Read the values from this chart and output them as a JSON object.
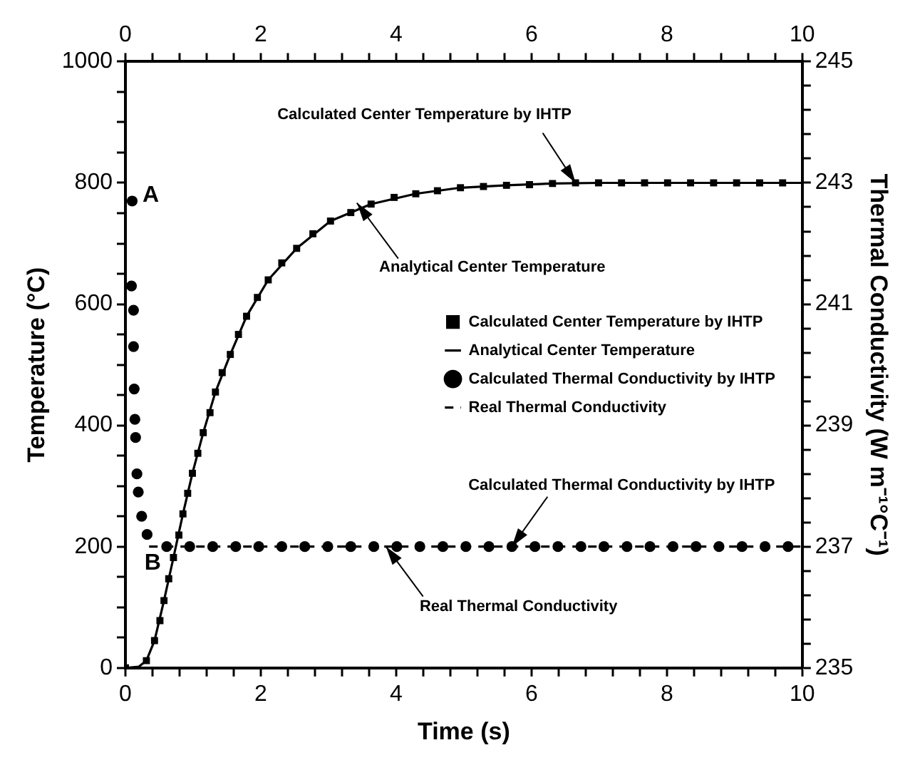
{
  "chart_data": {
    "type": "scatter",
    "xlabel": "Time (s)",
    "ylabel": "Temperature (°C)",
    "y2label": "Thermal Conductivity (W m⁻¹°C⁻¹)",
    "xlim": [
      0,
      10
    ],
    "xticks": [
      0,
      {
        "value": 0.4,
        "label": null
      },
      {
        "value": 0.8,
        "label": null
      },
      {
        "value": 1.2,
        "label": null
      },
      {
        "value": 1.6,
        "label": null
      },
      2,
      {
        "value": 2.4,
        "label": null
      },
      {
        "value": 2.8,
        "label": null
      },
      {
        "value": 3.2,
        "label": null
      },
      {
        "value": 3.6,
        "label": null
      },
      4,
      {
        "value": 4.4,
        "label": null
      },
      {
        "value": 4.8,
        "label": null
      },
      {
        "value": 5.2,
        "label": null
      },
      {
        "value": 5.6,
        "label": null
      },
      6,
      {
        "value": 6.4,
        "label": null
      },
      {
        "value": 6.8,
        "label": null
      },
      {
        "value": 7.2,
        "label": null
      },
      {
        "value": 7.6,
        "label": null
      },
      8,
      {
        "value": 8.4,
        "label": null
      },
      {
        "value": 8.8,
        "label": null
      },
      {
        "value": 9.2,
        "label": null
      },
      {
        "value": 9.6,
        "label": null
      },
      10
    ],
    "x2lim": [
      0,
      10
    ],
    "x2ticks": [
      0,
      {
        "value": 0.4,
        "label": null
      },
      {
        "value": 0.8,
        "label": null
      },
      {
        "value": 1.2,
        "label": null
      },
      {
        "value": 1.6,
        "label": null
      },
      2,
      {
        "value": 2.4,
        "label": null
      },
      {
        "value": 2.8,
        "label": null
      },
      {
        "value": 3.2,
        "label": null
      },
      {
        "value": 3.6,
        "label": null
      },
      4,
      {
        "value": 4.4,
        "label": null
      },
      {
        "value": 4.8,
        "label": null
      },
      {
        "value": 5.2,
        "label": null
      },
      {
        "value": 5.6,
        "label": null
      },
      6,
      {
        "value": 6.4,
        "label": null
      },
      {
        "value": 6.8,
        "label": null
      },
      {
        "value": 7.2,
        "label": null
      },
      {
        "value": 7.6,
        "label": null
      },
      8,
      {
        "value": 8.4,
        "label": null
      },
      {
        "value": 8.8,
        "label": null
      },
      {
        "value": 9.2,
        "label": null
      },
      {
        "value": 9.6,
        "label": null
      },
      10
    ],
    "ylim": [
      0,
      1000
    ],
    "yticks": [
      0,
      {
        "value": 50,
        "label": null
      },
      {
        "value": 100,
        "label": null
      },
      {
        "value": 150,
        "label": null
      },
      200,
      {
        "value": 250,
        "label": null
      },
      {
        "value": 300,
        "label": null
      },
      {
        "value": 350,
        "label": null
      },
      400,
      {
        "value": 450,
        "label": null
      },
      {
        "value": 500,
        "label": null
      },
      {
        "value": 550,
        "label": null
      },
      600,
      {
        "value": 650,
        "label": null
      },
      {
        "value": 700,
        "label": null
      },
      {
        "value": 750,
        "label": null
      },
      800,
      {
        "value": 850,
        "label": null
      },
      {
        "value": 900,
        "label": null
      },
      {
        "value": 950,
        "label": null
      },
      1000
    ],
    "y2lim": [
      235,
      245
    ],
    "y2ticks": [
      235,
      {
        "value": 235.4,
        "label": null
      },
      {
        "value": 235.8,
        "label": null
      },
      {
        "value": 236.2,
        "label": null
      },
      {
        "value": 236.6,
        "label": null
      },
      237,
      {
        "value": 237.4,
        "label": null
      },
      {
        "value": 237.8,
        "label": null
      },
      {
        "value": 238.2,
        "label": null
      },
      {
        "value": 238.6,
        "label": null
      },
      239,
      {
        "value": 239.4,
        "label": null
      },
      {
        "value": 239.8,
        "label": null
      },
      {
        "value": 240.2,
        "label": null
      },
      {
        "value": 240.6,
        "label": null
      },
      241,
      {
        "value": 241.4,
        "label": null
      },
      {
        "value": 241.8,
        "label": null
      },
      {
        "value": 242.2,
        "label": null
      },
      {
        "value": 242.6,
        "label": null
      },
      243,
      {
        "value": 243.4,
        "label": null
      },
      {
        "value": 243.8,
        "label": null
      },
      {
        "value": 244.2,
        "label": null
      },
      {
        "value": 244.6,
        "label": null
      },
      245
    ],
    "legend": "center right",
    "series": [
      {
        "name": "Calculated Center Temperature by IHTP",
        "marker": "square",
        "color": "#000000",
        "x": [
          0,
          0.31,
          0.43,
          0.51,
          0.57,
          0.64,
          0.71,
          0.79,
          0.85,
          0.92,
          0.99,
          1.07,
          1.15,
          1.25,
          1.33,
          1.43,
          1.55,
          1.67,
          1.79,
          1.95,
          2.11,
          2.31,
          2.53,
          2.77,
          3.03,
          3.33,
          3.63,
          3.97,
          4.29,
          4.61,
          4.95,
          5.29,
          5.63,
          5.97,
          6.31,
          6.65,
          6.99,
          7.33,
          7.67,
          8.01,
          8.35,
          8.69,
          9.03,
          9.37,
          9.71
        ],
        "values": [
          0,
          12,
          45,
          78,
          111,
          147,
          182,
          219,
          254,
          288,
          321,
          354,
          388,
          421,
          455,
          487,
          517,
          550,
          580,
          611,
          640,
          668,
          692,
          716,
          737,
          751,
          765,
          776,
          782,
          787,
          792,
          794,
          796,
          797,
          799,
          800,
          800,
          800,
          800,
          800,
          800,
          800,
          800,
          800,
          800
        ]
      },
      {
        "name": "Analytical Center Temperature",
        "type": "line",
        "marker": "none",
        "line_style": "solid",
        "color": "#000000",
        "x": [
          0,
          0.2,
          0.31,
          0.43,
          0.57,
          0.71,
          0.85,
          0.99,
          1.15,
          1.33,
          1.55,
          1.79,
          2.11,
          2.53,
          3.03,
          3.63,
          4.29,
          4.95,
          5.63,
          6.31,
          7,
          8,
          9,
          10
        ],
        "values": [
          0,
          2,
          12,
          45,
          111,
          182,
          254,
          321,
          388,
          455,
          517,
          580,
          640,
          692,
          737,
          765,
          782,
          792,
          796,
          799,
          800,
          800,
          800,
          800
        ]
      },
      {
        "name": "Calculated Thermal Conductivity by IHTP",
        "marker": "circle",
        "axis": "y2",
        "color": "#000000",
        "x": [
          0.1,
          0.09,
          0.12,
          0.12,
          0.13,
          0.14,
          0.15,
          0.17,
          0.19,
          0.24,
          0.32,
          0.61,
          0.95,
          1.29,
          1.63,
          1.97,
          2.31,
          2.65,
          2.99,
          3.33,
          3.67,
          4.01,
          4.35,
          4.69,
          5.03,
          5.37,
          5.71,
          6.05,
          6.39,
          6.73,
          7.07,
          7.41,
          7.75,
          8.09,
          8.43,
          8.77,
          9.11,
          9.45,
          9.79
        ],
        "values": [
          242.7,
          241.3,
          240.9,
          240.3,
          239.6,
          239.1,
          238.8,
          238.2,
          237.9,
          237.5,
          237.2,
          237,
          237,
          237,
          237,
          237,
          237,
          237,
          237,
          237,
          237,
          237,
          237,
          237,
          237,
          237,
          237,
          237,
          237,
          237,
          237,
          237,
          237,
          237,
          237,
          237,
          237,
          237,
          237
        ]
      },
      {
        "name": "Real Thermal Conductivity",
        "type": "line",
        "marker": "none",
        "line_style": "dashed",
        "axis": "y2",
        "color": "#000000",
        "x": [
          0.35,
          10
        ],
        "values": [
          237,
          237
        ]
      }
    ],
    "annotations": [
      {
        "text": "Calculated Center Temperature by IHTP",
        "x": 6.65,
        "y": 800
      },
      {
        "text": "Analytical Center Temperature",
        "x": 3.42,
        "y": 767
      },
      {
        "text": "Calculated Thermal Conductivity by IHTP",
        "x": 5.71,
        "y": 200
      },
      {
        "text": "Real Thermal Conductivity",
        "x": 3.85,
        "y": 200
      },
      {
        "text": "A",
        "x": 0.1,
        "y": 774
      },
      {
        "text": "B",
        "x": 0.32,
        "y": 217
      }
    ]
  }
}
